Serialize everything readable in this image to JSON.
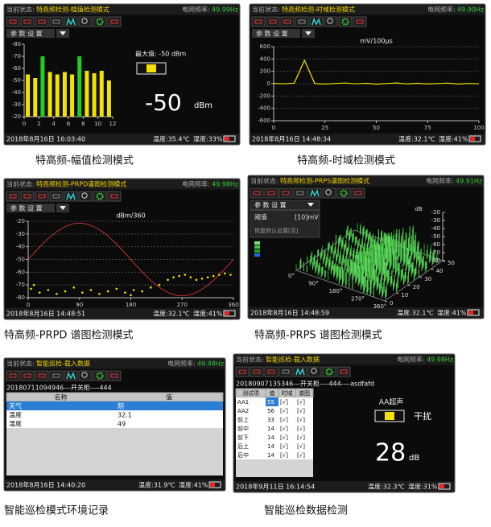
{
  "panels": [
    {
      "status_label": "当前状态:",
      "status": "特高频检测-幅值检测模式",
      "freq_label": "电网频率:",
      "freq": "49.99Hz",
      "menu": "参 数 设 置",
      "date": "2018年8月16日 16:03:40",
      "temp": "温度:35.4℃",
      "humidity": "湿度:33%",
      "caption": "特高频-幅值检测模式",
      "chart": {
        "type": "bar",
        "ylim": [
          -20,
          -80
        ],
        "yticks": [
          -80,
          -70,
          -60,
          -50,
          -40,
          -30,
          -20
        ],
        "xlim": [
          0,
          12
        ],
        "xticks": [
          0,
          2,
          4,
          6,
          8,
          10,
          12
        ],
        "x": [
          0.5,
          1.5,
          2.5,
          3.5,
          4.5,
          5.5,
          6.5,
          7.5,
          8.5,
          9.5,
          10.5,
          11.5
        ],
        "values": [
          -55,
          -52,
          -70,
          -57,
          -55,
          -57,
          -55,
          -70,
          -58,
          -56,
          -58,
          -50
        ],
        "colors": [
          "#f2e200",
          "#f2e200",
          "#22cc22",
          "#f2e200",
          "#f2e200",
          "#f2e200",
          "#f2e200",
          "#22cc22",
          "#f2e200",
          "#f2e200",
          "#f2e200",
          "#f2e200"
        ],
        "max_label": "最大值: -50 dBm",
        "reading": -50,
        "unit": "dBm"
      }
    },
    {
      "status_label": "当前状态:",
      "status": "特高频检测-时域检测模式",
      "freq_label": "电网频率:",
      "freq": "49.90Hz",
      "menu": "参 数 设 置",
      "date": "2018年8月16日 14:48:34",
      "temp": "温度:32.1℃",
      "humidity": "湿度:41%",
      "caption": "特高频-时域检测模式",
      "chart": {
        "type": "line",
        "title": "mV/100μs",
        "color": "#f2e200",
        "ylim": [
          -600,
          600
        ],
        "yticks": [
          600,
          400,
          200,
          0,
          -200,
          -400,
          -600
        ],
        "xlim": [
          0,
          100
        ],
        "xticks": [
          0,
          25,
          50,
          75,
          100
        ],
        "x": [
          0,
          5,
          10,
          15,
          20,
          25,
          30,
          35,
          40,
          45,
          50,
          55,
          60,
          65,
          70,
          75,
          80,
          85,
          90,
          95,
          100
        ],
        "values": [
          5,
          -3,
          8,
          380,
          2,
          -6,
          4,
          10,
          -2,
          6,
          -8,
          3,
          12,
          -4,
          7,
          -5,
          2,
          9,
          -6,
          4,
          -3
        ]
      }
    },
    {
      "status_label": "当前状态:",
      "status": "特高频检测-PRPD谱图检测模式",
      "freq_label": "电网频率:",
      "freq": "49.98Hz",
      "menu": "参 数 设 置",
      "date": "2018年8月16日 14:48:51",
      "temp": "温度:32.1℃",
      "humidity": "湿度:41%",
      "caption": "特高频-PRPD 谱图检测模式",
      "chart": {
        "type": "scatter",
        "title": "dBm/360",
        "color": "#f2e200",
        "ylim": [
          -80,
          -20
        ],
        "yticks": [
          -20,
          -30,
          -40,
          -50,
          -60,
          -70,
          -80
        ],
        "xlim": [
          0,
          360
        ],
        "xticks": [
          0,
          90,
          180,
          270,
          360
        ],
        "x": [
          5,
          20,
          35,
          50,
          65,
          80,
          95,
          110,
          125,
          140,
          155,
          170,
          185,
          200,
          215,
          230,
          245,
          255,
          265,
          275,
          285,
          295,
          305,
          315,
          325,
          335,
          345,
          355,
          10,
          180
        ],
        "values": [
          -73,
          -76,
          -74,
          -77,
          -75,
          -72,
          -76,
          -74,
          -77,
          -75,
          -73,
          -76,
          -74,
          -75,
          -72,
          -70,
          -66,
          -64,
          -63,
          -62,
          -64,
          -66,
          -65,
          -64,
          -63,
          -62,
          -61,
          -62,
          -70,
          -78
        ]
      }
    },
    {
      "status_label": "当前状态:",
      "status": "特高频检测-PRPS谱图检测模式",
      "freq_label": "电网频率:",
      "freq": "49.91Hz",
      "menu": "参 数 设 置",
      "threshold_label": "阈值",
      "threshold": "[10]mV",
      "reset": "恢复默认设置[否]",
      "date": "2018年8月16日 14:48:59",
      "temp": "温度:32.1℃",
      "humidity": "湿度:41%",
      "caption": "特高频-PRPS 谱图检测模式",
      "chart": {
        "type": "prps",
        "z_label": "dB",
        "zlim": [
          -80,
          -20
        ],
        "zticks": [
          -20,
          -30,
          -40,
          -50,
          -60,
          -70,
          -80
        ],
        "phase_labels": [
          "0°",
          "90°",
          "180°",
          "270°",
          "360°"
        ],
        "cycle_lim": [
          0,
          50
        ],
        "cycle_ticks": [
          0,
          10,
          20,
          30,
          40,
          50
        ]
      }
    },
    {
      "status_label": "当前状态:",
      "status": "智能巡检-载入数据",
      "freq_label": "电网频率:",
      "freq": "49.98Hz",
      "file": "20180711094946---开关柜----444",
      "table": {
        "header": [
          "名称",
          "值"
        ],
        "rows": [
          [
            "天气",
            "阴"
          ],
          [
            "温度",
            32.1
          ],
          [
            "湿度",
            49
          ]
        ]
      },
      "date": "2018年8月16日 14:40:20",
      "temp": "温度:31.9℃",
      "humidity": "湿度:41%",
      "caption": "智能巡检模式环境记录"
    },
    {
      "status_label": "当前状态:",
      "status": "智能巡检-载入数据",
      "freq_label": "电网频率:",
      "freq": "49.98Hz",
      "file": "20180907135346---开关柜----444----asdfafd",
      "table": {
        "header": [
          "测试项",
          "值",
          "时域",
          "谱图"
        ],
        "rows": [
          [
            "AA1",
            55,
            "[√]",
            "[√]"
          ],
          [
            "AA2",
            56,
            "[√]",
            "[√]"
          ],
          [
            "前上",
            33,
            "[√]",
            "[√]"
          ],
          [
            "前中",
            14,
            "[√]",
            "[√]"
          ],
          [
            "前下",
            14,
            "[√]",
            "[√]"
          ],
          [
            "后上",
            14,
            "[√]",
            "[√]"
          ],
          [
            "后中",
            14,
            "[√]",
            "[√]"
          ]
        ]
      },
      "reading_label": "AA超声",
      "state_text": "干扰",
      "reading": 28,
      "unit": "dB",
      "date": "2018年9月11日 16:14:54",
      "temp": "温度:32.3℃",
      "humidity": "湿度:31%",
      "caption": "智能巡检数据检测"
    }
  ]
}
